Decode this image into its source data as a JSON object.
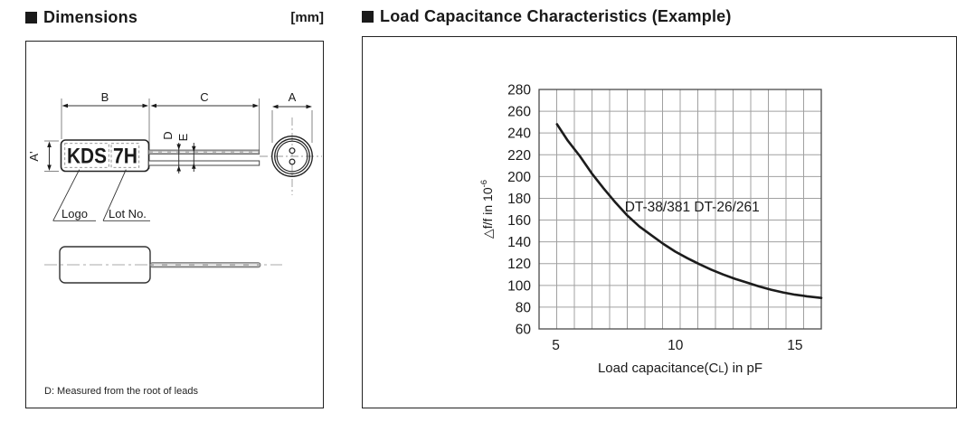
{
  "dimensions_panel": {
    "title": "Dimensions",
    "unit_label": "[mm]",
    "labels": {
      "dim_b": "B",
      "dim_c": "C",
      "dim_a": "A",
      "dim_a_prime": "A'",
      "dim_d": "D",
      "dim_e": "E",
      "marking_logo": "KDS",
      "marking_lot": "7H",
      "logo_pointer": "Logo",
      "lot_pointer": "Lot No.",
      "note": "D: Measured from the root of leads"
    }
  },
  "chart_panel": {
    "title": "Load Capacitance Characteristics (Example)"
  },
  "chart_data": {
    "type": "line",
    "title": "",
    "xlabel": "Load capacitance(CL) in pF",
    "xlabel_pre": "Load capacitance(C",
    "xlabel_sub": "L",
    "xlabel_post": ") in pF",
    "ylabel": "△f/f in 10^-6",
    "ylabel_pre": "△f/f in 10",
    "ylabel_sup": "-6",
    "x_range": [
      4.3,
      16.1
    ],
    "y_range": [
      60,
      280
    ],
    "x_ticks": [
      {
        "value": 5,
        "label": "5"
      },
      {
        "value": 10,
        "label": "10"
      },
      {
        "value": 15,
        "label": "15"
      }
    ],
    "y_ticks": [
      280,
      260,
      240,
      220,
      200,
      180,
      160,
      140,
      120,
      100,
      80,
      60
    ],
    "x_grid_divisions": 16,
    "grid": true,
    "legend_position": "inline-annotation",
    "annotation": {
      "text": "DT-38/381 DT-26/261",
      "x": 10.7,
      "y": 168
    },
    "series": [
      {
        "name": "DT-38/381 DT-26/261",
        "x": [
          5.05,
          5.5,
          6,
          6.5,
          7,
          7.5,
          8,
          8.5,
          9,
          9.5,
          10,
          10.5,
          11,
          11.5,
          12,
          12.5,
          13,
          13.5,
          14,
          14.5,
          15,
          15.5,
          16.1
        ],
        "y": [
          248,
          233,
          219,
          203,
          189,
          176,
          164,
          154,
          146,
          138,
          131,
          125,
          119.5,
          114.5,
          110,
          106,
          102.5,
          99,
          96,
          93.5,
          91.5,
          90,
          88.5
        ]
      }
    ]
  },
  "colors": {
    "ink": "#1a1a1a",
    "grid": "#a0a0a0",
    "frame": "#4a4a4a",
    "curve": "#1c1c1c",
    "lead_fill": "#b3b3b3",
    "centerline": "#aaaaaa"
  }
}
